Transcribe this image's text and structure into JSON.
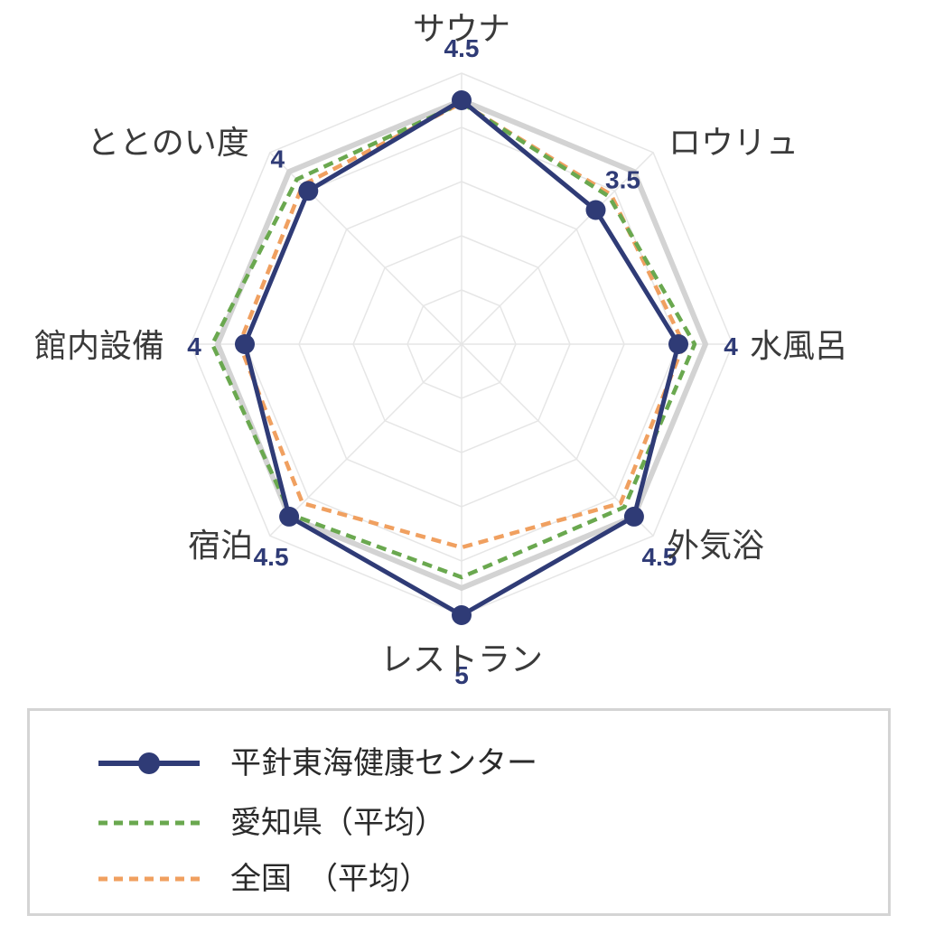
{
  "chart_data": {
    "type": "radar",
    "axes": [
      "サウナ",
      "ロウリュ",
      "水風呂",
      "外気浴",
      "レストラン",
      "宿泊",
      "館内設備",
      "ととのい度"
    ],
    "rmax": 5,
    "rings": 5,
    "series": [
      {
        "name": "平針東海健康センター",
        "values": [
          4.5,
          3.5,
          4,
          4.5,
          5,
          4.5,
          4,
          4
        ],
        "color": "#2f3b76",
        "style": "solid-marker"
      },
      {
        "name": "愛知県（平均）",
        "values": [
          4.45,
          3.85,
          4.3,
          4.25,
          4.3,
          4.45,
          4.6,
          4.3
        ],
        "color": "#6aa84f",
        "style": "dashed"
      },
      {
        "name": "全国　（平均）",
        "values": [
          4.45,
          3.9,
          4.1,
          4.15,
          3.75,
          4.15,
          4.1,
          4.15
        ],
        "color": "#f0a060",
        "style": "dashed"
      }
    ],
    "value_labels": [
      "4.5",
      "3.5",
      "4",
      "4.5",
      "5",
      "4.5",
      "4",
      "4"
    ],
    "legend_position": "bottom"
  }
}
